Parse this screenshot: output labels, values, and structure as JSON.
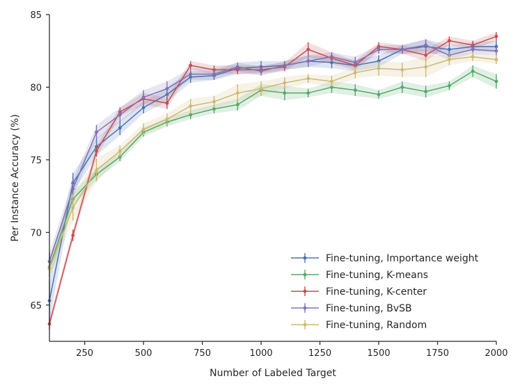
{
  "chart_data": {
    "type": "line",
    "title": "",
    "xlabel": "Number of Labeled Target",
    "ylabel": "Per Instance Accuracy (%)",
    "xlim": [
      100,
      2000
    ],
    "ylim": [
      62.5,
      85
    ],
    "xticks": [
      250,
      500,
      750,
      1000,
      1250,
      1500,
      1750,
      2000
    ],
    "yticks": [
      65,
      70,
      75,
      80,
      85
    ],
    "legend_position": "bottom-right",
    "x": [
      100,
      200,
      300,
      400,
      500,
      600,
      700,
      800,
      900,
      1000,
      1100,
      1200,
      1300,
      1400,
      1500,
      1600,
      1700,
      1800,
      1900,
      2000
    ],
    "series": [
      {
        "name": "Fine-tuning, Importance weight",
        "color": "#4c72b0",
        "values": [
          65.3,
          73.4,
          75.9,
          77.2,
          78.6,
          79.5,
          80.7,
          80.8,
          81.3,
          81.4,
          81.5,
          81.8,
          81.7,
          81.5,
          81.8,
          82.6,
          82.8,
          82.6,
          82.8,
          82.8
        ],
        "errors": [
          1.5,
          0.7,
          0.6,
          0.5,
          0.4,
          0.5,
          0.4,
          0.3,
          0.4,
          0.4,
          0.3,
          0.4,
          0.4,
          0.4,
          0.4,
          0.3,
          0.5,
          0.3,
          0.3,
          0.4
        ]
      },
      {
        "name": "Fine-tuning, K-means",
        "color": "#55a868",
        "values": [
          67.6,
          72.3,
          74.0,
          75.2,
          76.9,
          77.6,
          78.1,
          78.5,
          78.8,
          79.8,
          79.6,
          79.6,
          80.0,
          79.8,
          79.5,
          80.0,
          79.7,
          80.1,
          81.1,
          80.4
        ],
        "errors": [
          0.7,
          0.5,
          0.4,
          0.3,
          0.3,
          0.3,
          0.3,
          0.3,
          0.4,
          0.4,
          0.5,
          0.3,
          0.4,
          0.4,
          0.3,
          0.4,
          0.4,
          0.3,
          0.4,
          0.5
        ]
      },
      {
        "name": "Fine-tuning, K-center",
        "color": "#c44e52",
        "values": [
          63.7,
          69.8,
          75.6,
          78.3,
          79.2,
          78.9,
          81.5,
          81.2,
          81.2,
          81.2,
          81.4,
          82.6,
          82.0,
          81.5,
          82.8,
          82.6,
          82.2,
          83.2,
          82.9,
          83.5
        ],
        "errors": [
          0.4,
          0.4,
          0.4,
          0.3,
          0.4,
          0.4,
          0.3,
          0.3,
          0.3,
          0.3,
          0.3,
          0.5,
          0.4,
          0.3,
          0.3,
          0.3,
          0.4,
          0.3,
          0.3,
          0.3
        ]
      },
      {
        "name": "Fine-tuning, BvSB",
        "color": "#8172b2",
        "values": [
          68.0,
          73.0,
          76.9,
          78.1,
          79.3,
          79.9,
          80.9,
          80.9,
          81.4,
          81.1,
          81.5,
          81.8,
          82.1,
          81.7,
          82.6,
          82.6,
          82.9,
          82.2,
          82.6,
          82.5
        ],
        "errors": [
          0.6,
          0.6,
          0.5,
          0.5,
          0.5,
          0.5,
          0.4,
          0.4,
          0.3,
          0.3,
          0.3,
          0.4,
          0.3,
          0.4,
          0.3,
          0.3,
          0.4,
          0.3,
          0.3,
          0.3
        ]
      },
      {
        "name": "Fine-tuning, Random",
        "color": "#ccb974",
        "values": [
          67.5,
          71.7,
          74.3,
          75.6,
          77.1,
          77.8,
          78.7,
          79.0,
          79.6,
          79.9,
          80.3,
          80.6,
          80.4,
          81.0,
          81.3,
          81.2,
          81.4,
          81.9,
          82.1,
          81.9
        ],
        "errors": [
          0.6,
          0.9,
          0.8,
          0.4,
          0.4,
          0.4,
          0.5,
          0.4,
          0.6,
          0.5,
          0.4,
          0.3,
          0.4,
          0.4,
          0.5,
          0.5,
          0.7,
          0.4,
          0.3,
          0.3
        ]
      }
    ]
  }
}
